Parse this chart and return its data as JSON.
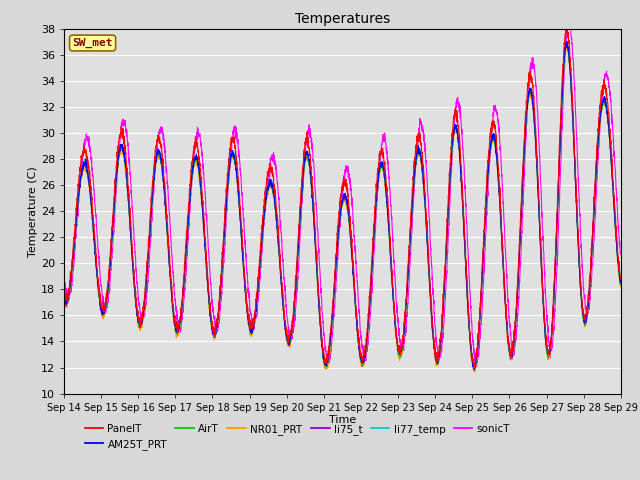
{
  "title": "Temperatures",
  "xlabel": "Time",
  "ylabel": "Temperature (C)",
  "ylim": [
    10,
    38
  ],
  "xtick_labels": [
    "Sep 14",
    "Sep 15",
    "Sep 16",
    "Sep 17",
    "Sep 18",
    "Sep 19",
    "Sep 20",
    "Sep 21",
    "Sep 22",
    "Sep 23",
    "Sep 24",
    "Sep 25",
    "Sep 26",
    "Sep 27",
    "Sep 28",
    "Sep 29"
  ],
  "ytick_positions": [
    10,
    12,
    14,
    16,
    18,
    20,
    22,
    24,
    26,
    28,
    30,
    32,
    34,
    36,
    38
  ],
  "background_color": "#d8d8d8",
  "plot_bg_color": "#e0e0e0",
  "series": {
    "PanelT": {
      "color": "#ff0000",
      "lw": 0.8
    },
    "AM25T_PRT": {
      "color": "#0000ff",
      "lw": 0.8
    },
    "AirT": {
      "color": "#00cc00",
      "lw": 0.8
    },
    "NR01_PRT": {
      "color": "#ff9900",
      "lw": 0.8
    },
    "li75_t": {
      "color": "#9900cc",
      "lw": 0.8
    },
    "li77_temp": {
      "color": "#00cccc",
      "lw": 0.8
    },
    "sonicT": {
      "color": "#ff00ff",
      "lw": 0.8
    }
  },
  "sw_met_box": {
    "text": "SW_met",
    "facecolor": "#ffff99",
    "edgecolor": "#996600",
    "textcolor": "#880000",
    "fontsize": 8
  },
  "legend_order": [
    "PanelT",
    "AM25T_PRT",
    "AirT",
    "NR01_PRT",
    "li75_t",
    "li77_temp",
    "sonicT"
  ],
  "n_days": 15,
  "n_pts_per_day": 200,
  "night_mins": [
    17.0,
    15.5,
    15.0,
    14.5,
    14.5,
    15.0,
    13.0,
    11.5,
    13.0,
    13.0,
    12.0,
    12.0,
    13.5,
    12.5,
    18.0
  ],
  "day_peaks": [
    27.5,
    29.0,
    28.5,
    28.0,
    28.5,
    26.0,
    28.5,
    25.0,
    27.5,
    28.5,
    30.5,
    29.5,
    33.0,
    37.0,
    32.5
  ],
  "sonic_peak_boost": 1.5,
  "sonic_phase_shift": -0.06
}
